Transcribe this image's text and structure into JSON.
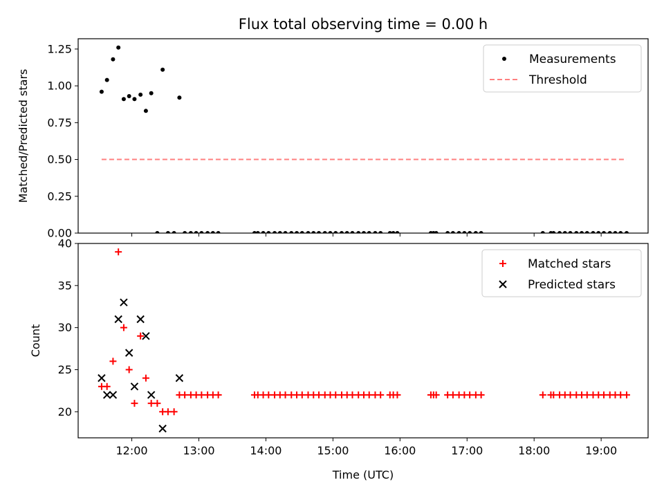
{
  "colors": {
    "measurement": "#000000",
    "threshold": "#ff7f7f",
    "matched": "#ff0000",
    "predicted": "#000000"
  },
  "chart_data": [
    {
      "type": "scatter",
      "title": "Flux total observing time = 0.00 h",
      "ylabel": "Matched/Predicted stars",
      "ylim": [
        0,
        1.32
      ],
      "xlim": [
        11.2,
        19.7
      ],
      "yticks": [
        {
          "v": 0,
          "label": "0.00"
        },
        {
          "v": 0.25,
          "label": "0.25"
        },
        {
          "v": 0.5,
          "label": "0.50"
        },
        {
          "v": 0.75,
          "label": "0.75"
        },
        {
          "v": 1.0,
          "label": "1.00"
        },
        {
          "v": 1.25,
          "label": "1.25"
        }
      ],
      "legend": {
        "position": "top-right",
        "entries": [
          "Measurements",
          "Threshold"
        ]
      },
      "series": [
        {
          "name": "Measurements",
          "marker": "dot",
          "x": [
            11.55,
            11.63,
            11.72,
            11.8,
            11.88,
            11.96,
            12.04,
            12.13,
            12.21,
            12.29,
            12.46,
            12.71
          ],
          "y": [
            0.96,
            1.04,
            1.18,
            1.26,
            0.91,
            0.93,
            0.91,
            0.94,
            0.83,
            0.95,
            1.11,
            0.92
          ]
        },
        {
          "name": "Measurements",
          "marker": "dot",
          "x": [
            12.38,
            12.54,
            12.63,
            12.79,
            12.88,
            12.96,
            13.04,
            13.13,
            13.21,
            13.29,
            13.83,
            13.88,
            13.96,
            14.04,
            14.13,
            14.21,
            14.29,
            14.38,
            14.46,
            14.54,
            14.63,
            14.71,
            14.79,
            14.88,
            14.96,
            15.04,
            15.13,
            15.21,
            15.29,
            15.38,
            15.46,
            15.54,
            15.63,
            15.71,
            15.85,
            15.9,
            15.96,
            16.46,
            16.5,
            16.54,
            16.71,
            16.79,
            16.88,
            16.96,
            17.04,
            17.13,
            17.21,
            18.13,
            18.25,
            18.29,
            18.38,
            18.46,
            18.54,
            18.63,
            18.71,
            18.79,
            18.88,
            18.96,
            19.04,
            19.13,
            19.21,
            19.29,
            19.38
          ],
          "y": [
            0,
            0,
            0,
            0,
            0,
            0,
            0,
            0,
            0,
            0,
            0,
            0,
            0,
            0,
            0,
            0,
            0,
            0,
            0,
            0,
            0,
            0,
            0,
            0,
            0,
            0,
            0,
            0,
            0,
            0,
            0,
            0,
            0,
            0,
            0,
            0,
            0,
            0,
            0,
            0,
            0,
            0,
            0,
            0,
            0,
            0,
            0,
            0,
            0,
            0,
            0,
            0,
            0,
            0,
            0,
            0,
            0,
            0,
            0,
            0,
            0,
            0,
            0
          ]
        },
        {
          "name": "Threshold",
          "marker": "dashed-line",
          "x": [
            11.55,
            19.38
          ],
          "y": [
            0.5,
            0.5
          ]
        }
      ]
    },
    {
      "type": "scatter",
      "xlabel": "Time (UTC)",
      "ylabel": "Count",
      "ylim": [
        16.9,
        40.0
      ],
      "xlim": [
        11.2,
        19.7
      ],
      "yticks": [
        {
          "v": 20,
          "label": "20"
        },
        {
          "v": 25,
          "label": "25"
        },
        {
          "v": 30,
          "label": "30"
        },
        {
          "v": 35,
          "label": "35"
        },
        {
          "v": 40,
          "label": "40"
        }
      ],
      "xticks": [
        {
          "v": 12,
          "label": "12:00"
        },
        {
          "v": 13,
          "label": "13:00"
        },
        {
          "v": 14,
          "label": "14:00"
        },
        {
          "v": 15,
          "label": "15:00"
        },
        {
          "v": 16,
          "label": "16:00"
        },
        {
          "v": 17,
          "label": "17:00"
        },
        {
          "v": 18,
          "label": "18:00"
        },
        {
          "v": 19,
          "label": "19:00"
        }
      ],
      "legend": {
        "position": "top-right",
        "entries": [
          "Matched stars",
          "Predicted stars"
        ]
      },
      "series": [
        {
          "name": "Matched stars",
          "marker": "plus",
          "x": [
            11.55,
            11.63,
            11.72,
            11.8,
            11.88,
            11.96,
            12.04,
            12.13,
            12.21,
            12.29,
            12.38,
            12.46,
            12.54,
            12.63,
            12.71,
            12.79,
            12.88,
            12.96,
            13.04,
            13.13,
            13.21,
            13.29,
            13.83,
            13.88,
            13.96,
            14.04,
            14.13,
            14.21,
            14.29,
            14.38,
            14.46,
            14.54,
            14.63,
            14.71,
            14.79,
            14.88,
            14.96,
            15.04,
            15.13,
            15.21,
            15.29,
            15.38,
            15.46,
            15.54,
            15.63,
            15.71,
            15.85,
            15.9,
            15.96,
            16.46,
            16.5,
            16.54,
            16.71,
            16.79,
            16.88,
            16.96,
            17.04,
            17.13,
            17.21,
            18.13,
            18.25,
            18.29,
            18.38,
            18.46,
            18.54,
            18.63,
            18.71,
            18.79,
            18.88,
            18.96,
            19.04,
            19.13,
            19.21,
            19.29,
            19.38
          ],
          "y": [
            23,
            23,
            26,
            39,
            30,
            25,
            21,
            29,
            24,
            21,
            21,
            20,
            20,
            20,
            22,
            22,
            22,
            22,
            22,
            22,
            22,
            22,
            22,
            22,
            22,
            22,
            22,
            22,
            22,
            22,
            22,
            22,
            22,
            22,
            22,
            22,
            22,
            22,
            22,
            22,
            22,
            22,
            22,
            22,
            22,
            22,
            22,
            22,
            22,
            22,
            22,
            22,
            22,
            22,
            22,
            22,
            22,
            22,
            22,
            22,
            22,
            22,
            22,
            22,
            22,
            22,
            22,
            22,
            22,
            22,
            22,
            22,
            22,
            22,
            22
          ]
        },
        {
          "name": "Predicted stars",
          "marker": "x",
          "x": [
            11.55,
            11.63,
            11.72,
            11.8,
            11.88,
            11.96,
            12.04,
            12.13,
            12.21,
            12.29,
            12.46,
            12.71
          ],
          "y": [
            24,
            22,
            22,
            31,
            33,
            27,
            23,
            31,
            29,
            22,
            18,
            24
          ]
        }
      ]
    }
  ]
}
